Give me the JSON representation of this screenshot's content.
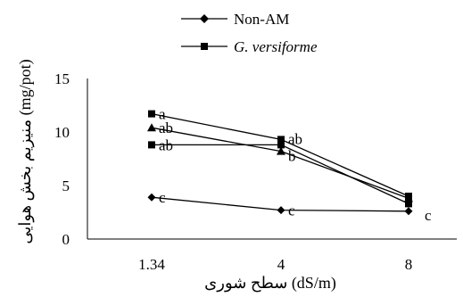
{
  "chart_data": {
    "type": "line",
    "x": [
      1.34,
      4,
      8
    ],
    "x_tick_labels": [
      "1.34",
      "4",
      "8"
    ],
    "xlabel": "سطح شوری (dS/m)",
    "ylabel": "منیزیم بخش هوایی (mg/pot)",
    "ylim": [
      0,
      15
    ],
    "y_ticks": [
      0,
      5,
      10,
      15
    ],
    "grid": false,
    "legend_position": "top",
    "series": [
      {
        "name": "Non-AM",
        "marker": "diamond",
        "values": [
          3.9,
          2.7,
          2.6
        ],
        "point_labels": [
          "c",
          "c",
          "c"
        ]
      },
      {
        "name": "G. versiforme",
        "italic": true,
        "marker": "square",
        "values": [
          11.7,
          9.3,
          4.0
        ],
        "point_labels": [
          "a",
          "ab",
          ""
        ]
      },
      {
        "name": "",
        "marker": "triangle",
        "values": [
          10.4,
          8.2,
          3.8
        ],
        "point_labels": [
          "ab",
          "b",
          ""
        ]
      },
      {
        "name": "",
        "marker": "square",
        "values": [
          8.8,
          8.8,
          3.3
        ],
        "point_labels": [
          "ab",
          "",
          ""
        ]
      }
    ],
    "colors": {
      "line": "#000000",
      "marker": "#000000"
    }
  }
}
